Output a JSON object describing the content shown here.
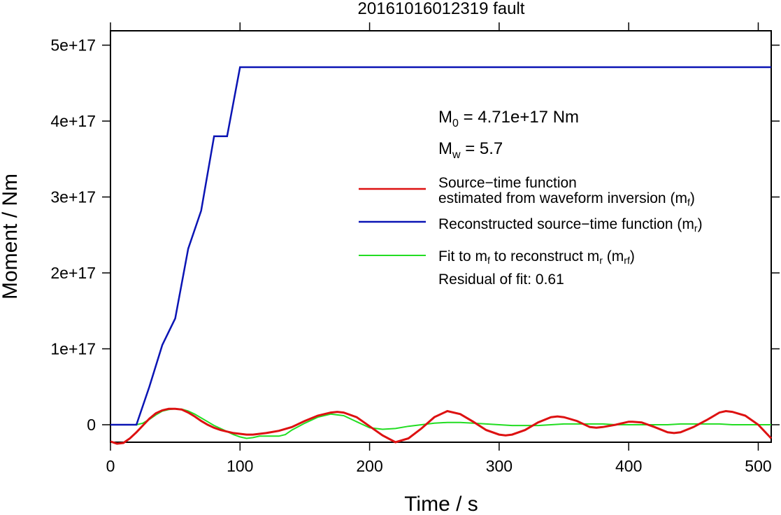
{
  "chart_data": {
    "type": "line",
    "title": "20161016012319 fault",
    "xlabel": "Time / s",
    "ylabel": "Moment / Nm",
    "xlim": [
      0,
      510
    ],
    "ylim": [
      -2.5e+16,
      5.2e+17
    ],
    "x_ticks": [
      0,
      100,
      200,
      300,
      400,
      500
    ],
    "x_tick_labels": [
      "0",
      "100",
      "200",
      "300",
      "400",
      "500"
    ],
    "y_ticks": [
      0,
      1e+17,
      2e+17,
      3e+17,
      4e+17,
      5e+17
    ],
    "y_tick_labels": [
      "0",
      "1e+17",
      "2e+17",
      "3e+17",
      "4e+17",
      "5e+17"
    ],
    "grid": false,
    "legend_position": "right",
    "annotations": {
      "m0_prefix": "M",
      "m0_sub": "0",
      "m0_value": " = 4.71e+17 Nm",
      "mw_prefix": "M",
      "mw_sub": "w",
      "mw_value": " = 5.7",
      "residual": "Residual of fit: 0.61"
    },
    "legend": {
      "red_line1": "Source−time function",
      "red_line2_main": "estimated from waveform inversion (m",
      "red_line2_sub": "f",
      "red_line2_end": ")",
      "blue_main": "Reconstructed source−time function (m",
      "blue_sub": "r",
      "blue_end": ")",
      "green_a": "Fit to m",
      "green_sub1": "f",
      "green_b": " to reconstruct m",
      "green_sub2": "r",
      "green_c": " (m",
      "green_sub3": "rf",
      "green_d": ")"
    },
    "colors": {
      "red": "#dd1111",
      "blue": "#0a14b4",
      "green": "#22dd22",
      "frame": "#000000"
    },
    "series": [
      {
        "name": "Source−time function estimated from waveform inversion (mf)",
        "color": "red",
        "x": [
          0,
          5,
          10,
          15,
          20,
          25,
          30,
          35,
          40,
          45,
          50,
          55,
          60,
          65,
          70,
          75,
          80,
          85,
          90,
          95,
          100,
          105,
          110,
          120,
          130,
          140,
          150,
          160,
          170,
          175,
          180,
          190,
          200,
          210,
          220,
          230,
          240,
          250,
          260,
          270,
          280,
          290,
          300,
          305,
          310,
          320,
          330,
          340,
          345,
          350,
          360,
          370,
          375,
          380,
          390,
          400,
          403,
          410,
          420,
          430,
          435,
          440,
          450,
          460,
          470,
          475,
          480,
          490,
          500,
          510
        ],
        "y": [
          -2.2e+16,
          -2.5e+16,
          -2.4e+16,
          -1.8e+16,
          -1e+16,
          -1000000000000000.0,
          8000000000000000.0,
          1.5e+16,
          1.9e+16,
          2.1e+16,
          2.1e+16,
          2e+16,
          1.6e+16,
          1.1e+16,
          5000000000000000.0,
          0,
          -4000000000000000.0,
          -7000000000000000.0,
          -9000000000000000.0,
          -1.1e+16,
          -1.2e+16,
          -1.3e+16,
          -1.3e+16,
          -1.1e+16,
          -8000000000000000.0,
          -3000000000000000.0,
          5000000000000000.0,
          1.2e+16,
          1.6e+16,
          1.7e+16,
          1.6e+16,
          1e+16,
          -2000000000000000.0,
          -1.4e+16,
          -2.3e+16,
          -1.8e+16,
          -5000000000000000.0,
          1e+16,
          1.8e+16,
          1.4e+16,
          4000000000000000.0,
          -7000000000000000.0,
          -1.3e+16,
          -1.4e+16,
          -1.3e+16,
          -7000000000000000.0,
          3000000000000000.0,
          1e+16,
          1.1e+16,
          1e+16,
          5000000000000000.0,
          -3000000000000000.0,
          -4000000000000000.0,
          -3000000000000000.0,
          0,
          4000000000000000.0,
          4000000000000000.0,
          3000000000000000.0,
          -3000000000000000.0,
          -1e+16,
          -1.1e+16,
          -1e+16,
          -3000000000000000.0,
          6000000000000000.0,
          1.6e+16,
          1.8e+16,
          1.7e+16,
          1.2e+16,
          0,
          -1.8e+16
        ]
      },
      {
        "name": "Reconstructed source−time function (mr)",
        "color": "blue",
        "x": [
          0,
          20,
          30,
          40,
          50,
          60,
          70,
          80,
          90,
          100,
          510
        ],
        "y": [
          0,
          0,
          5e+16,
          1.05e+17,
          1.4e+17,
          2.32e+17,
          2.82e+17,
          3.8e+17,
          3.8e+17,
          4.71e+17,
          4.71e+17
        ]
      },
      {
        "name": "Fit to mf to reconstruct mr (mrf)",
        "color": "green",
        "x": [
          0,
          20,
          25,
          30,
          35,
          40,
          45,
          50,
          55,
          60,
          65,
          70,
          75,
          80,
          85,
          90,
          95,
          100,
          105,
          110,
          115,
          120,
          130,
          135,
          140,
          150,
          160,
          170,
          180,
          190,
          200,
          210,
          220,
          230,
          240,
          250,
          260,
          270,
          280,
          290,
          300,
          310,
          320,
          330,
          340,
          350,
          360,
          370,
          380,
          390,
          400,
          410,
          420,
          430,
          440,
          450,
          460,
          470,
          480,
          490,
          500,
          510
        ],
        "y": [
          0,
          0,
          2000000000000000.0,
          7000000000000000.0,
          1.3e+16,
          1.8e+16,
          2e+16,
          2.1e+16,
          2.05e+16,
          1.8e+16,
          1.4e+16,
          9000000000000000.0,
          4000000000000000.0,
          -1000000000000000.0,
          -5000000000000000.0,
          -9000000000000000.0,
          -1.3e+16,
          -1.6e+16,
          -1.8e+16,
          -1.7e+16,
          -1.5e+16,
          -1.5e+16,
          -1.5e+16,
          -1.3e+16,
          -7000000000000000.0,
          2000000000000000.0,
          1e+16,
          1.4e+16,
          1.2e+16,
          4000000000000000.0,
          -4000000000000000.0,
          -6000000000000000.0,
          -5000000000000000.0,
          -2000000000000000.0,
          0,
          2000000000000000.0,
          3000000000000000.0,
          3000000000000000.0,
          2000000000000000.0,
          1000000000000000.0,
          0,
          -1000000000000000.0,
          -1000000000000000.0,
          -1000000000000000.0,
          0,
          1000000000000000.0,
          1000000000000000.0,
          1000000000000000.0,
          1000000000000000.0,
          0,
          0,
          0,
          0,
          0,
          1000000000000000.0,
          1000000000000000.0,
          1000000000000000.0,
          1000000000000000.0,
          0,
          0,
          0,
          0
        ]
      }
    ]
  }
}
